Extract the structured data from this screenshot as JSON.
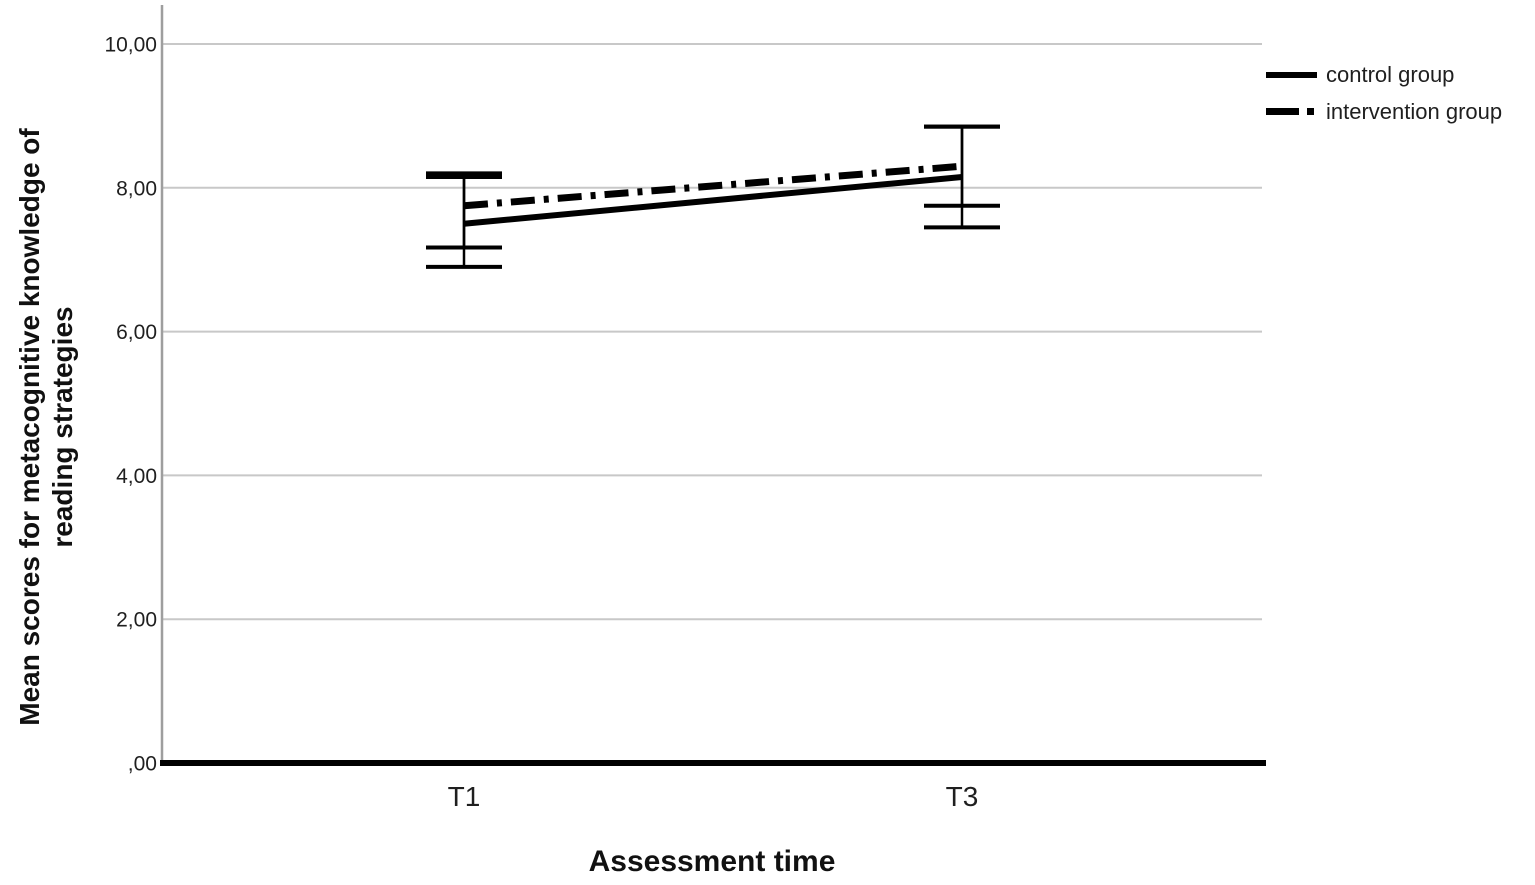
{
  "page": {
    "background": "#ffffff"
  },
  "colors": {
    "gridline": "#c8c8c8",
    "axis_line": "#9e9e9e",
    "baseline": "#000000",
    "text": "#1f1f1f",
    "series": "#000000"
  },
  "chart_data": {
    "type": "line",
    "title": "",
    "xlabel": "Assessment time",
    "ylabel": "Mean scores for metacognitive knowledge of reading strategies",
    "ylabel_line1": "Mean scores for metacognitive knowledge of",
    "ylabel_line2": "reading strategies",
    "categories": [
      "T1",
      "T3"
    ],
    "ylim": [
      0,
      10.55
    ],
    "ytick_values": [
      0,
      2,
      4,
      6,
      8,
      10
    ],
    "ytick_labels": [
      ",00",
      "2,00",
      "4,00",
      "6,00",
      "8,00",
      "10,00"
    ],
    "grid": "horizontal",
    "legend_position": "top-right-outside",
    "series": [
      {
        "name": "control group",
        "line_style": "solid",
        "color": "#000000",
        "values": [
          7.5,
          8.15
        ],
        "ci_lower": [
          6.9,
          7.45
        ],
        "ci_upper": [
          8.15,
          8.85
        ]
      },
      {
        "name": "intervention group",
        "line_style": "dash-dot",
        "color": "#000000",
        "values": [
          7.75,
          8.3
        ],
        "ci_lower": [
          7.17,
          7.75
        ],
        "ci_upper": [
          8.2,
          8.85
        ]
      }
    ]
  }
}
